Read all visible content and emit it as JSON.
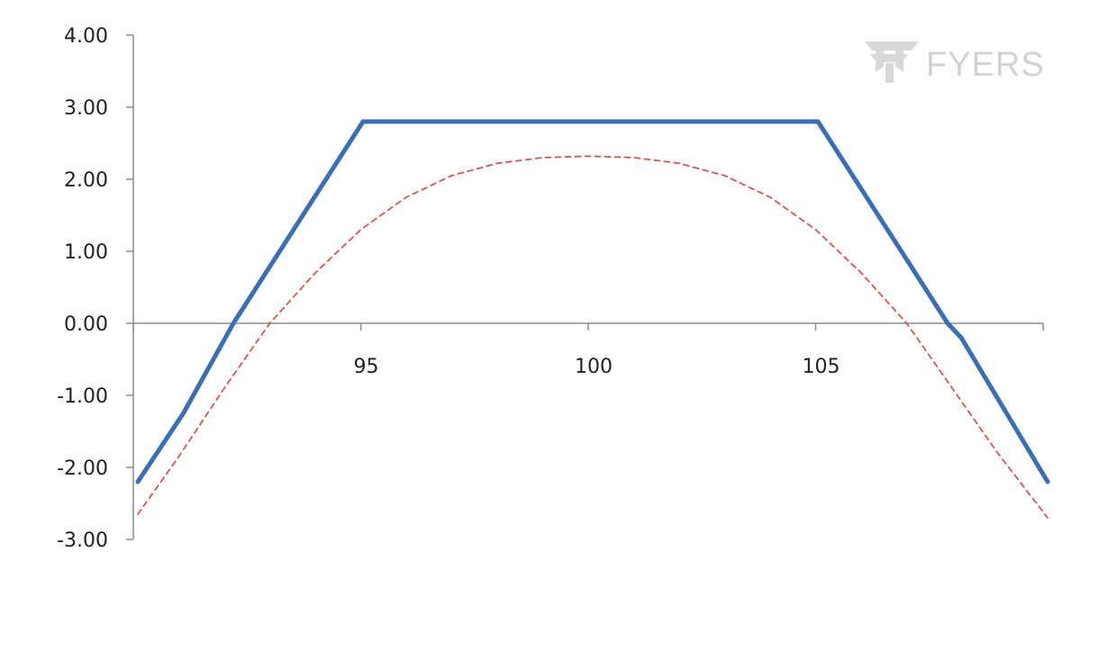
{
  "watermark": {
    "text": "FYERS",
    "color": "#d2d2d2"
  },
  "chart_data": {
    "type": "line",
    "title": "",
    "xlabel": "",
    "ylabel": "",
    "xlim": [
      90,
      110
    ],
    "ylim": [
      -3,
      4
    ],
    "x_ticks": [
      95,
      100,
      105
    ],
    "x_tick_labels": [
      "95",
      "100",
      "105"
    ],
    "y_ticks": [
      4,
      3,
      2,
      1,
      0,
      -1,
      -2,
      -3
    ],
    "y_tick_labels": [
      "4.00",
      "3.00",
      "2.00",
      "1.00",
      "0.00",
      "-1.00",
      "-2.00",
      "-3.00"
    ],
    "grid": false,
    "legend": "none",
    "series": [
      {
        "style": "solid",
        "color": "#3a6fb7",
        "x": [
          90.1,
          91.1,
          92.2,
          95.05,
          105.05,
          107.9,
          108.2,
          110.1
        ],
        "y": [
          -2.2,
          -1.25,
          0.0,
          2.8,
          2.8,
          0.0,
          -0.2,
          -2.2
        ]
      },
      {
        "style": "dashed",
        "color": "#d9534f",
        "x": [
          90.1,
          91,
          92,
          93,
          94,
          95,
          96,
          97,
          98,
          99,
          100,
          101,
          102,
          103,
          104,
          105,
          106,
          107,
          108,
          109,
          110.1
        ],
        "y": [
          -2.65,
          -1.85,
          -0.9,
          0.0,
          0.7,
          1.3,
          1.75,
          2.05,
          2.22,
          2.3,
          2.32,
          2.3,
          2.22,
          2.05,
          1.75,
          1.3,
          0.7,
          0.0,
          -0.9,
          -1.8,
          -2.7
        ]
      }
    ]
  }
}
